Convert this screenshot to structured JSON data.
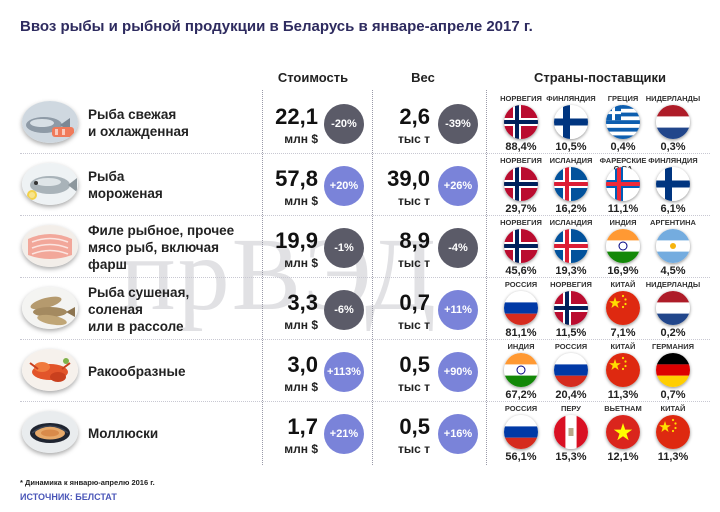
{
  "title": "Ввоз рыбы и рыбной продукции в Беларусь в январе-апреле 2017 г.",
  "headers": {
    "cost": "Стоимость",
    "weight": "Вес",
    "countries": "Страны-поставщики"
  },
  "watermark": "прВЭД",
  "footnote": "* Динамика к январю-апрелю 2016 г.",
  "source": "ИСТОЧНИК: БЕЛСТАТ",
  "colors": {
    "negative_badge": "#5b5b68",
    "positive_badge": "#7a83d9",
    "title": "#2e2b5f",
    "source": "#4a56b8"
  },
  "chart_data": {
    "type": "table",
    "columns": [
      "Стоимость",
      "Вес",
      "Страны-поставщики"
    ],
    "rows": [
      {
        "label": "Рыба свежая и охлажденная",
        "label_lines": [
          "Рыба свежая",
          "и охлажденная"
        ],
        "icon": "fresh-fish-icon",
        "cost": "22,1",
        "cost_unit": "млн $",
        "cost_change": "-20%",
        "cost_change_value": -20,
        "weight": "2,6",
        "weight_unit": "тыс т",
        "weight_change": "-39%",
        "weight_change_value": -39,
        "suppliers": [
          {
            "country": "НОРВЕГИЯ",
            "flag": "norway",
            "share": "88,4%"
          },
          {
            "country": "ФИНЛЯНДИЯ",
            "flag": "finland",
            "share": "10,5%"
          },
          {
            "country": "ГРЕЦИЯ",
            "flag": "greece",
            "share": "0,4%"
          },
          {
            "country": "НИДЕРЛАНДЫ",
            "flag": "netherlands",
            "share": "0,3%"
          }
        ]
      },
      {
        "label": "Рыба мороженая",
        "label_lines": [
          "Рыба",
          "мороженая"
        ],
        "icon": "frozen-fish-icon",
        "cost": "57,8",
        "cost_unit": "млн $",
        "cost_change": "+20%",
        "cost_change_value": 20,
        "weight": "39,0",
        "weight_unit": "тыс т",
        "weight_change": "+26%",
        "weight_change_value": 26,
        "suppliers": [
          {
            "country": "НОРВЕГИЯ",
            "flag": "norway",
            "share": "29,7%"
          },
          {
            "country": "ИСЛАНДИЯ",
            "flag": "iceland",
            "share": "16,2%"
          },
          {
            "country": "ФАРЕРСКИЕ О-ВА",
            "flag": "faroe",
            "share": "11,1%"
          },
          {
            "country": "ФИНЛЯНДИЯ",
            "flag": "finland",
            "share": "6,1%"
          }
        ]
      },
      {
        "label": "Филе рыбное, прочее мясо рыб, включая фарш",
        "label_lines": [
          "Филе рыбное, прочее",
          "мясо рыб, включая",
          "фарш"
        ],
        "icon": "fish-fillet-icon",
        "cost": "19,9",
        "cost_unit": "млн $",
        "cost_change": "-1%",
        "cost_change_value": -1,
        "weight": "8,9",
        "weight_unit": "тыс т",
        "weight_change": "-4%",
        "weight_change_value": -4,
        "suppliers": [
          {
            "country": "НОРВЕГИЯ",
            "flag": "norway",
            "share": "45,6%"
          },
          {
            "country": "ИСЛАНДИЯ",
            "flag": "iceland",
            "share": "19,3%"
          },
          {
            "country": "ИНДИЯ",
            "flag": "india",
            "share": "16,9%"
          },
          {
            "country": "АРГЕНТИНА",
            "flag": "argentina",
            "share": "4,5%"
          }
        ]
      },
      {
        "label": "Рыба сушеная, соленая или в рассоле",
        "label_lines": [
          "Рыба сушеная,",
          "соленая",
          "или в рассоле"
        ],
        "icon": "dried-fish-icon",
        "cost": "3,3",
        "cost_unit": "млн $",
        "cost_change": "-6%",
        "cost_change_value": -6,
        "weight": "0,7",
        "weight_unit": "тыс т",
        "weight_change": "+11%",
        "weight_change_value": 11,
        "suppliers": [
          {
            "country": "РОССИЯ",
            "flag": "russia",
            "share": "81,1%"
          },
          {
            "country": "НОРВЕГИЯ",
            "flag": "norway",
            "share": "11,5%"
          },
          {
            "country": "КИТАЙ",
            "flag": "china",
            "share": "7,1%"
          },
          {
            "country": "НИДЕРЛАНДЫ",
            "flag": "netherlands",
            "share": "0,2%"
          }
        ]
      },
      {
        "label": "Ракообразные",
        "label_lines": [
          "Ракообразные"
        ],
        "icon": "crustaceans-icon",
        "cost": "3,0",
        "cost_unit": "млн $",
        "cost_change": "+113%",
        "cost_change_value": 113,
        "weight": "0,5",
        "weight_unit": "тыс т",
        "weight_change": "+90%",
        "weight_change_value": 90,
        "suppliers": [
          {
            "country": "ИНДИЯ",
            "flag": "india",
            "share": "67,2%"
          },
          {
            "country": "РОССИЯ",
            "flag": "russia",
            "share": "20,4%"
          },
          {
            "country": "КИТАЙ",
            "flag": "china",
            "share": "11,3%"
          },
          {
            "country": "ГЕРМАНИЯ",
            "flag": "germany",
            "share": "0,7%"
          }
        ]
      },
      {
        "label": "Моллюски",
        "label_lines": [
          "Моллюски"
        ],
        "icon": "mollusks-icon",
        "cost": "1,7",
        "cost_unit": "млн $",
        "cost_change": "+21%",
        "cost_change_value": 21,
        "weight": "0,5",
        "weight_unit": "тыс т",
        "weight_change": "+16%",
        "weight_change_value": 16,
        "suppliers": [
          {
            "country": "РОССИЯ",
            "flag": "russia",
            "share": "56,1%"
          },
          {
            "country": "ПЕРУ",
            "flag": "peru",
            "share": "15,3%"
          },
          {
            "country": "ВЬЕТНАМ",
            "flag": "vietnam",
            "share": "12,1%"
          },
          {
            "country": "КИТАЙ",
            "flag": "china",
            "share": "11,3%"
          }
        ]
      }
    ]
  }
}
